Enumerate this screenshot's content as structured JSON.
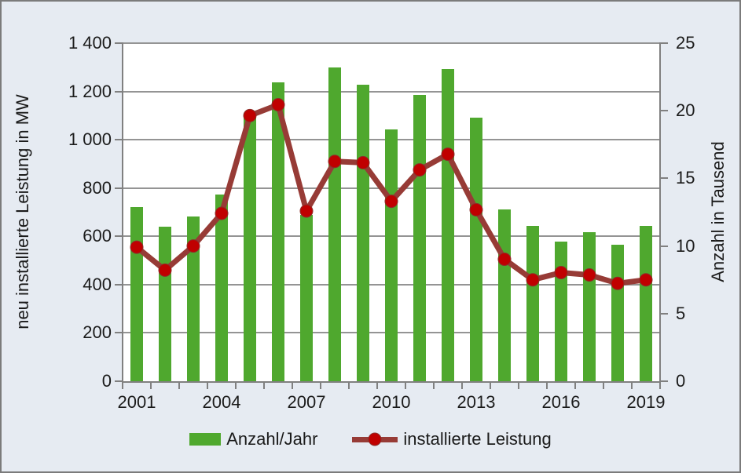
{
  "chart": {
    "background": "#e6ebf2",
    "plot_background": "#ffffff",
    "grid_color": "#949494",
    "axis_color": "#808080",
    "bar_color": "#4fa82e",
    "line_color": "#973b36",
    "marker_color": "#c00000",
    "text_color": "#1b1b1b"
  },
  "chart_data": {
    "type": "bar+line combo",
    "grid": true,
    "categories": [
      2001,
      2002,
      2003,
      2004,
      2005,
      2006,
      2007,
      2008,
      2009,
      2010,
      2011,
      2012,
      2013,
      2014,
      2015,
      2016,
      2017,
      2018,
      2019
    ],
    "series": [
      {
        "name": "Anzahl/Jahr",
        "type": "bar",
        "axis": "right",
        "unit": "Tausend",
        "color": "#4fa82e",
        "values": [
          12.9,
          11.4,
          12.2,
          13.8,
          19.5,
          22.1,
          12.3,
          23.2,
          21.9,
          18.6,
          21.2,
          23.1,
          19.5,
          12.7,
          11.5,
          10.3,
          11.0,
          10.1,
          11.5
        ]
      },
      {
        "name": "installierte Leistung",
        "type": "line",
        "axis": "left",
        "unit": "MW",
        "color": "#973b36",
        "marker_color": "#c00000",
        "values": [
          555,
          460,
          560,
          695,
          1100,
          1145,
          705,
          910,
          905,
          745,
          875,
          940,
          710,
          505,
          420,
          450,
          440,
          405,
          420
        ]
      }
    ],
    "left_axis": {
      "title": "neu installierte Leistung in MW",
      "min": 0,
      "max": 1400,
      "step": 200,
      "tick_labels": [
        "0",
        "200",
        "400",
        "600",
        "800",
        "1 000",
        "1 200",
        "1 400"
      ]
    },
    "right_axis": {
      "title": "Anzahl in Tausend",
      "min": 0,
      "max": 25,
      "step": 5,
      "tick_labels": [
        "0",
        "5",
        "10",
        "15",
        "20",
        "25"
      ]
    },
    "x_axis": {
      "labeled_years": [
        2001,
        2004,
        2007,
        2010,
        2013,
        2016,
        2019
      ]
    },
    "legend": [
      {
        "label": "Anzahl/Jahr",
        "swatch": "bar"
      },
      {
        "label": "installierte Leistung",
        "swatch": "line-marker"
      }
    ],
    "legend_position": "bottom"
  }
}
